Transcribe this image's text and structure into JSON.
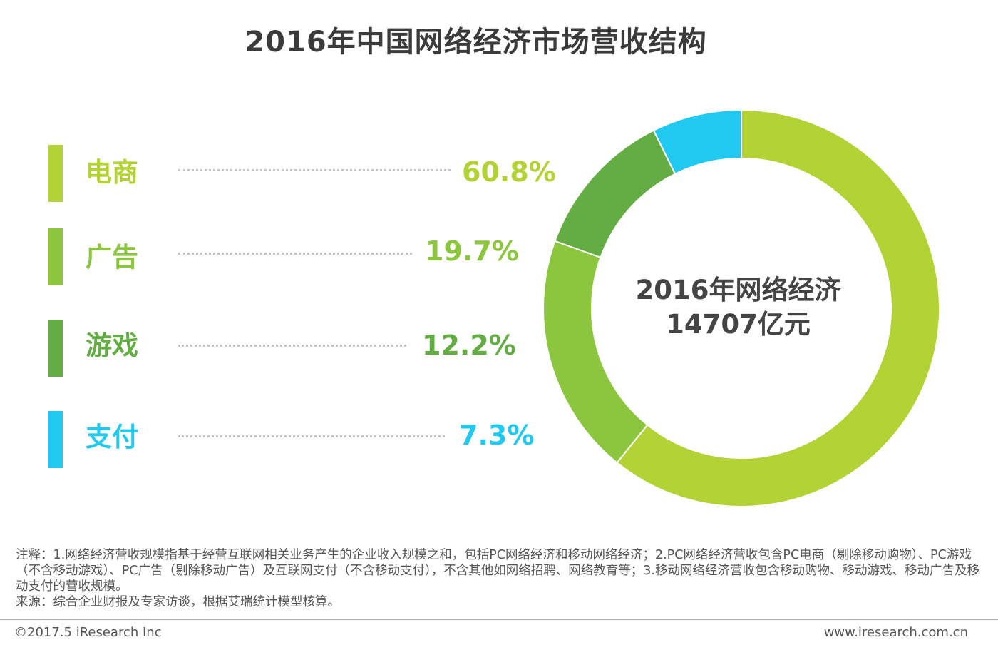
{
  "title": "2016年中国网络经济市场营收结构",
  "center_label": {
    "line1": "2016年网络经济",
    "line2": "14707亿元"
  },
  "chart_data": {
    "type": "pie",
    "title": "2016年中国网络经济市场营收结构",
    "donut": true,
    "categories": [
      "电商",
      "广告",
      "游戏",
      "支付"
    ],
    "values": [
      60.8,
      19.7,
      12.2,
      7.3
    ],
    "value_labels": [
      "60.8%",
      "19.7%",
      "12.2%",
      "7.3%"
    ],
    "colors": [
      "#b2d235",
      "#8cc63f",
      "#64ad45",
      "#21c8f0"
    ],
    "total_label": "14707亿元"
  },
  "notes": {
    "line1": "注释：1.网络经济营收规模指基于经营互联网相关业务产生的企业收入规模之和，包括PC网络经济和移动网络经济；2.PC网络经济营收包含PC电商（剔除移动购物）、PC游戏（不含移动游戏）、PC广告（剔除移动广告）及互联网支付（不含移动支付），不含其他如网络招聘、网络教育等；3.移动网络经济营收包含移动购物、移动游戏、移动广告及移动支付的营收规模。",
    "line2": "来源：综合企业财报及专家访谈，根据艾瑞统计模型核算。"
  },
  "footer": {
    "copyright": "©2017.5 iResearch Inc",
    "website": "www.iresearch.com.cn"
  }
}
